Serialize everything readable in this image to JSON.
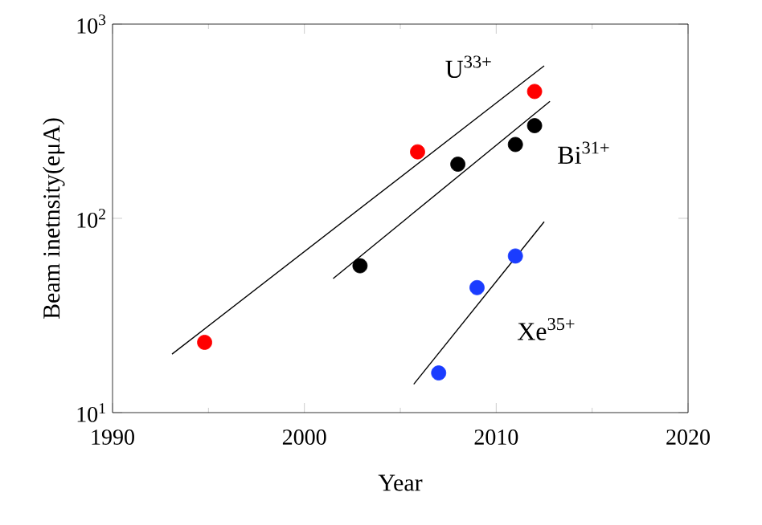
{
  "chart_data": {
    "type": "scatter",
    "xlabel": "Year",
    "ylabel": "Beam inetnsity(eμA)",
    "log": "y",
    "xlim": [
      1990,
      2020
    ],
    "xticks": [
      1990,
      2000,
      2010,
      2020
    ],
    "ylim": [
      10,
      1000
    ],
    "yticks": [
      {
        "value": 10,
        "label": "10$^{1}$"
      },
      {
        "value": 100,
        "label": "10$^{2}$"
      },
      {
        "value": 1000,
        "label": "10$^{3}$"
      }
    ],
    "marker": "circle",
    "series": [
      {
        "color": "#ff0000",
        "x": [
          1994.8,
          2005.9,
          2012.0
        ],
        "values": [
          23,
          220,
          450
        ]
      },
      {
        "color": "#000000",
        "x": [
          2002.9,
          2008.0,
          2011.0,
          2012.0
        ],
        "values": [
          57,
          190,
          240,
          300
        ]
      },
      {
        "color": "#1a3cff",
        "x": [
          2007.0,
          2009.0,
          2011.0
        ],
        "values": [
          16,
          44,
          64
        ]
      },
      {
        "type": "line",
        "color": "#000000",
        "x": [
          1993.1,
          2012.5
        ],
        "values": [
          20,
          610
        ],
        "marker": "none"
      },
      {
        "type": "line",
        "color": "#000000",
        "x": [
          2001.5,
          2012.8
        ],
        "values": [
          49,
          400
        ],
        "marker": "none"
      },
      {
        "type": "line",
        "color": "#000000",
        "x": [
          2005.7,
          2012.5
        ],
        "values": [
          14,
          96
        ],
        "marker": "none"
      }
    ],
    "annotations": [
      "U$^{33+}$",
      "Bi$^{31+}$",
      "Xe$^{35+}$"
    ]
  }
}
